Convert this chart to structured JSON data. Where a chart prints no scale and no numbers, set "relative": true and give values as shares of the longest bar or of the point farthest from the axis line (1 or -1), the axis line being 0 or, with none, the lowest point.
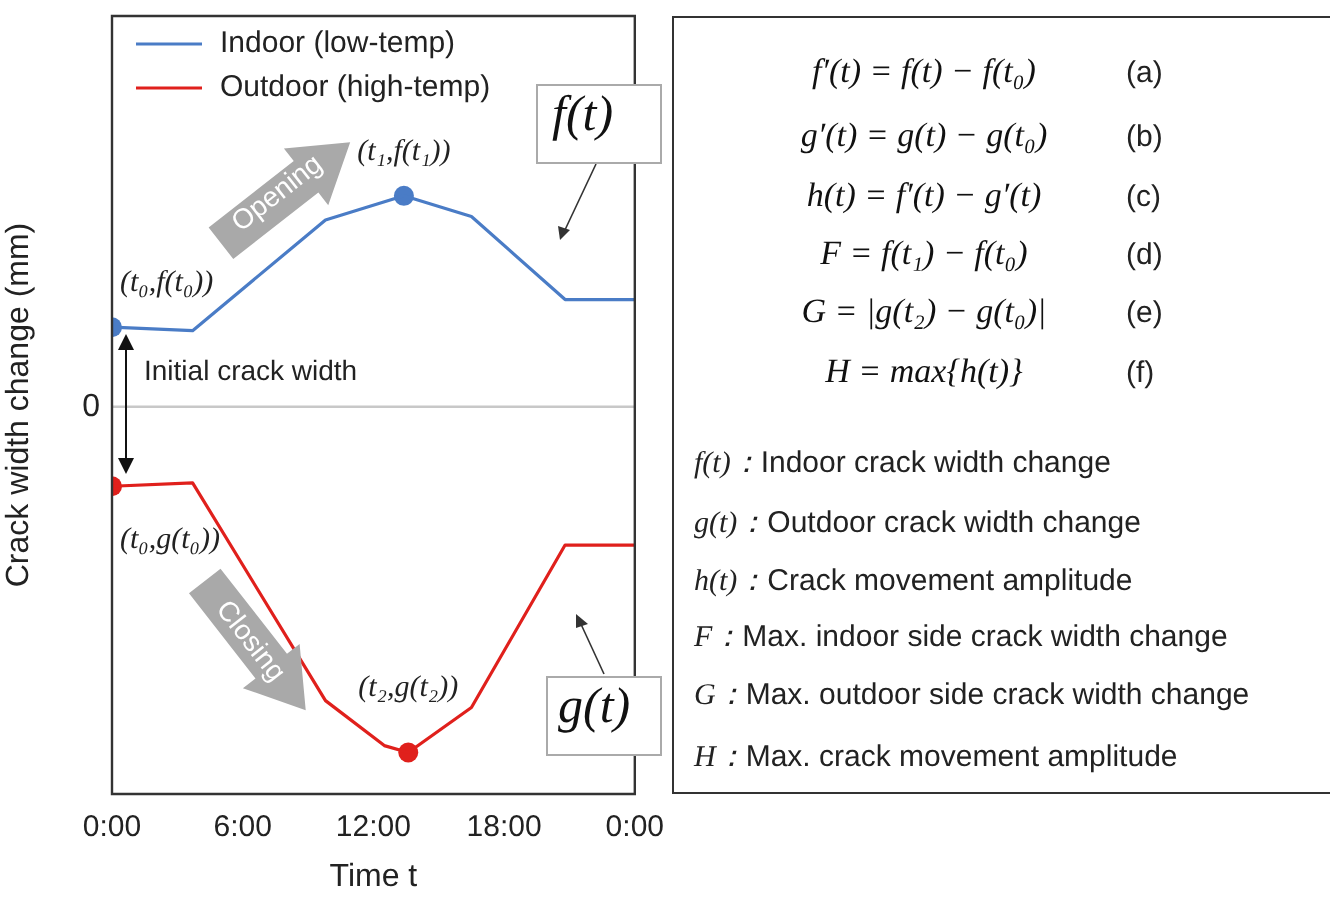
{
  "chart_data": [
    {
      "type": "line",
      "xlabel": "Time t",
      "ylabel": "Crack width change (mm)",
      "relative": true,
      "xlim": [
        0,
        24
      ],
      "xticks": [
        {
          "value": 0,
          "label": "0:00"
        },
        {
          "value": 6,
          "label": "6:00"
        },
        {
          "value": 12,
          "label": "12:00"
        },
        {
          "value": 18,
          "label": "18:00"
        },
        {
          "value": 24,
          "label": "0:00"
        }
      ],
      "series": [
        {
          "name": "Indoor (low-temp)",
          "color": "#4a7cc6",
          "x": [
            0,
            3.7,
            9.8,
            13.4,
            16.5,
            20.8,
            24
          ],
          "values": [
            0.23,
            0.22,
            0.54,
            0.61,
            0.55,
            0.31,
            0.31
          ]
        },
        {
          "name": "Outdoor (high-temp)",
          "color": "#e0201c",
          "x": [
            0,
            3.7,
            9.8,
            12.5,
            13.6,
            16.5,
            20.8,
            24
          ],
          "values": [
            -0.23,
            -0.22,
            -0.85,
            -0.98,
            -1,
            -0.87,
            -0.4,
            -0.4
          ]
        },
        {
          "type": "scatter",
          "marker": "circle",
          "color": "#4a7cc6",
          "x": [
            0,
            13.4
          ],
          "values": [
            0.23,
            0.61
          ]
        },
        {
          "type": "scatter",
          "marker": "circle",
          "color": "#e0201c",
          "x": [
            0,
            13.6
          ],
          "values": [
            -0.23,
            -1
          ]
        }
      ],
      "ref_lines": [
        {
          "axis": "y",
          "value": 0,
          "label": "0",
          "color": "#c8c8c8"
        }
      ],
      "legend": "top left",
      "grid": false,
      "marker": "none",
      "annotations": [
        {
          "text": "(t₀,f(t₀))",
          "x": 0,
          "y": 0.23
        },
        {
          "text": "(t₁,f(t₁))",
          "x": 13.4,
          "y": 0.61
        },
        {
          "text": "(t₀,g(t₀))",
          "x": 0,
          "y": -0.23
        },
        {
          "text": "(t₂,g(t₂))",
          "x": 13.6,
          "y": -1
        },
        "Opening",
        "Closing",
        "f(t)",
        "g(t)",
        "Initial crack width"
      ]
    },
    {
      "type": "other",
      "annotations": [
        "f′(t) = f(t) − f(t₀)",
        "(a)",
        "g′(t) = g(t) − g(t₀)",
        "(b)",
        "h(t) = f′(t) − g′(t)",
        "(c)",
        "F = f(t₁) − f(t₀)",
        "(d)",
        "G = |g(t₂) − g(t₀)|",
        "(e)",
        "H = max{h(t)}",
        "(f)",
        "f(t)：Indoor crack width change",
        "g(t)：Outdoor crack width change",
        "h(t)：Crack movement amplitude",
        "F：Max. indoor side crack width change",
        "G：Max. outdoor side crack width change",
        "H：Max.  crack movement amplitude"
      ]
    }
  ]
}
